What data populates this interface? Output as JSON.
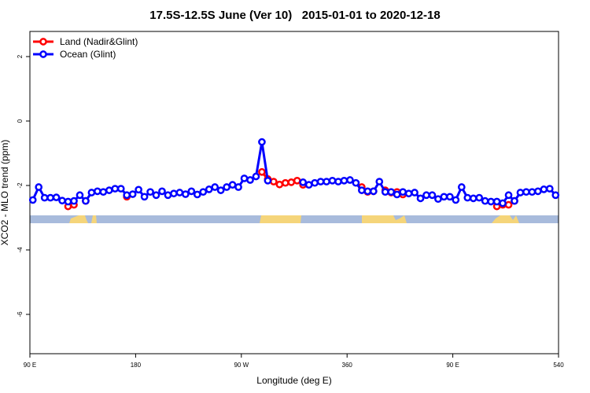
{
  "chart_data": {
    "type": "line",
    "title": "17.5S-12.5S June (Ver 10)   2015-01-01 to 2020-12-18",
    "x_label": "Longitude (deg E)",
    "y_label": "XCO2 - MLO trend (ppm)",
    "x": [
      92.5,
      97.5,
      102.5,
      107.5,
      112.5,
      117.5,
      122.5,
      127.5,
      132.5,
      137.5,
      142.5,
      147.5,
      152.5,
      157.5,
      162.5,
      167.5,
      172.5,
      177.5,
      182.5,
      187.5,
      192.5,
      197.5,
      202.5,
      207.5,
      212.5,
      217.5,
      222.5,
      227.5,
      232.5,
      237.5,
      242.5,
      247.5,
      252.5,
      257.5,
      262.5,
      267.5,
      272.5,
      277.5,
      282.5,
      287.5,
      292.5,
      297.5,
      302.5,
      307.5,
      312.5,
      317.5,
      322.5,
      327.5,
      332.5,
      337.5,
      342.5,
      347.5,
      352.5,
      357.5,
      362.5,
      367.5,
      372.5,
      377.5,
      382.5,
      387.5,
      392.5,
      397.5,
      402.5,
      407.5,
      412.5,
      417.5,
      422.5,
      427.5,
      432.5,
      437.5,
      442.5,
      447.5,
      452.5,
      457.5,
      462.5,
      467.5,
      472.5,
      477.5,
      482.5,
      487.5,
      492.5,
      497.5,
      502.5,
      507.5,
      512.5,
      517.5,
      522.5,
      527.5,
      532.5,
      537.5
    ],
    "series": [
      {
        "name": "Land (Nadir&Glint)",
        "color": "#ff0000",
        "values": [
          null,
          null,
          null,
          null,
          null,
          null,
          -2.65,
          -2.6,
          null,
          -2.48,
          null,
          null,
          null,
          null,
          null,
          null,
          -2.35,
          null,
          null,
          null,
          null,
          null,
          null,
          null,
          null,
          null,
          null,
          null,
          null,
          null,
          null,
          null,
          null,
          null,
          null,
          null,
          null,
          null,
          null,
          -1.58,
          -1.8,
          -1.88,
          -1.97,
          -1.92,
          -1.9,
          -1.85,
          -1.98,
          null,
          null,
          null,
          null,
          null,
          null,
          null,
          null,
          null,
          -2.05,
          -2.2,
          -2.18,
          null,
          -2.15,
          -2.22,
          -2.2,
          -2.28,
          null,
          null,
          null,
          null,
          null,
          null,
          null,
          null,
          null,
          null,
          null,
          null,
          null,
          null,
          null,
          -2.65,
          -2.6,
          -2.6,
          -2.48,
          null,
          null,
          null,
          null,
          null,
          null,
          null
        ]
      },
      {
        "name": "Ocean (Glint)",
        "color": "#0000ff",
        "values": [
          -2.45,
          -2.05,
          -2.38,
          -2.38,
          -2.37,
          -2.47,
          -2.5,
          -2.48,
          -2.3,
          -2.48,
          -2.22,
          -2.18,
          -2.2,
          -2.15,
          -2.1,
          -2.1,
          -2.3,
          -2.27,
          -2.13,
          -2.35,
          -2.2,
          -2.3,
          -2.18,
          -2.3,
          -2.25,
          -2.22,
          -2.27,
          -2.18,
          -2.28,
          -2.2,
          -2.12,
          -2.05,
          -2.15,
          -2.05,
          -1.98,
          -2.05,
          -1.78,
          -1.83,
          -1.72,
          -0.65,
          -1.85,
          null,
          null,
          null,
          null,
          null,
          -1.9,
          -1.98,
          -1.92,
          -1.88,
          -1.88,
          -1.85,
          -1.88,
          -1.85,
          -1.83,
          -1.92,
          -2.15,
          -2.18,
          -2.18,
          -1.88,
          -2.2,
          -2.2,
          -2.28,
          -2.2,
          -2.25,
          -2.22,
          -2.4,
          -2.3,
          -2.3,
          -2.42,
          -2.35,
          -2.35,
          -2.45,
          -2.05,
          -2.38,
          -2.4,
          -2.38,
          -2.48,
          -2.5,
          -2.5,
          -2.55,
          -2.3,
          -2.48,
          -2.22,
          -2.2,
          -2.2,
          -2.18,
          -2.12,
          -2.1,
          -2.3
        ]
      }
    ],
    "xlim": [
      90,
      540
    ],
    "xticks": [
      {
        "value": 90,
        "label": "90 E"
      },
      180,
      {
        "value": 270,
        "label": "90 W"
      },
      360,
      {
        "value": 450,
        "label": "90 E"
      },
      540
    ],
    "ylim": [
      -7.22,
      2.78
    ],
    "yticks": [
      -6,
      -4,
      -2,
      0,
      2
    ],
    "legend": "top-left",
    "grid": false
  }
}
